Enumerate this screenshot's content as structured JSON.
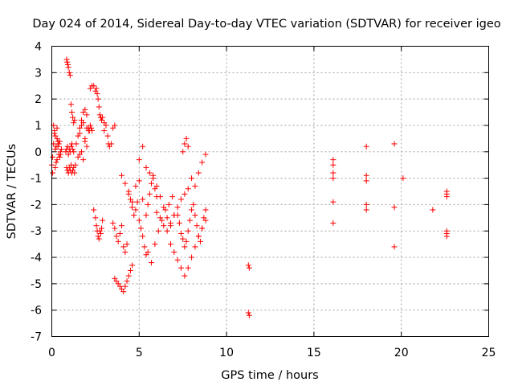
{
  "chart_data": {
    "type": "scatter",
    "title": "Day 024 of 2014, Sidereal Day-to-day VTEC variation (SDTVAR) for receiver igeo",
    "xlabel": "GPS time / hours",
    "ylabel": "SDTVAR / TECUs",
    "xlim": [
      0,
      25
    ],
    "ylim": [
      -7,
      4
    ],
    "xticks": [
      0,
      5,
      10,
      15,
      20,
      25
    ],
    "yticks": [
      -7,
      -6,
      -5,
      -4,
      -3,
      -2,
      -1,
      0,
      1,
      2,
      3,
      4
    ],
    "grid": true,
    "marker": "+",
    "color": "#ff0000",
    "series": [
      {
        "name": "igeo",
        "x": [
          0.0,
          0.05,
          0.1,
          0.15,
          0.2,
          0.25,
          0.3,
          0.35,
          0.4,
          0.45,
          0.5,
          0.1,
          0.2,
          0.3,
          0.05,
          0.15,
          0.25,
          0.35,
          0.45,
          0.55,
          0.2,
          0.3,
          0.4,
          0.5,
          0.85,
          0.88,
          0.92,
          0.95,
          1.0,
          1.05,
          1.1,
          1.15,
          1.2,
          1.25,
          1.3,
          0.85,
          0.9,
          0.95,
          1.0,
          1.05,
          1.1,
          1.15,
          1.2,
          1.25,
          1.3,
          1.35,
          0.8,
          0.85,
          0.9,
          0.95,
          1.0,
          1.05,
          1.1,
          1.15,
          1.2,
          1.25,
          1.4,
          1.5,
          1.6,
          1.7,
          1.8,
          1.9,
          2.0,
          1.5,
          1.6,
          1.7,
          1.8,
          1.9,
          2.0,
          2.1,
          1.6,
          1.7,
          1.8,
          1.9,
          2.0,
          2.1,
          2.15,
          2.2,
          2.25,
          2.3,
          2.2,
          2.3,
          2.4,
          2.5,
          2.55,
          2.6,
          2.65,
          2.7,
          2.75,
          2.8,
          2.85,
          2.9,
          3.0,
          2.4,
          2.5,
          2.55,
          2.6,
          2.65,
          2.7,
          2.75,
          2.8,
          2.85,
          2.9,
          3.0,
          3.1,
          3.2,
          3.25,
          3.3,
          3.4,
          3.5,
          3.6,
          3.5,
          3.6,
          3.7,
          3.8,
          3.9,
          4.0,
          4.1,
          4.2,
          4.3,
          3.6,
          3.7,
          3.8,
          3.9,
          4.0,
          4.1,
          4.2,
          4.3,
          4.4,
          4.5,
          4.6,
          4.0,
          4.2,
          4.4,
          4.6,
          4.8,
          5.0,
          5.2,
          5.4,
          4.4,
          4.5,
          4.6,
          4.7,
          4.8,
          4.9,
          5.0,
          5.1,
          5.2,
          5.3,
          5.4,
          5.5,
          5.6,
          5.7,
          5.8,
          5.9,
          6.0,
          5.0,
          5.2,
          5.4,
          5.6,
          5.8,
          6.0,
          6.2,
          6.4,
          6.6,
          6.8,
          7.0,
          5.5,
          5.7,
          5.9,
          6.1,
          6.3,
          6.5,
          6.7,
          6.9,
          6.0,
          6.2,
          6.4,
          6.6,
          6.8,
          7.0,
          7.2,
          7.4,
          7.6,
          7.8,
          6.8,
          7.0,
          7.2,
          7.4,
          7.6,
          7.8,
          8.0,
          8.2,
          8.4,
          8.6,
          8.8,
          7.2,
          7.3,
          7.4,
          7.5,
          7.6,
          7.7,
          7.8,
          7.9,
          8.0,
          8.1,
          8.2,
          8.3,
          8.4,
          8.5,
          8.6,
          8.7,
          8.8,
          7.5,
          7.6,
          7.7,
          7.8,
          8.0,
          8.2,
          8.4,
          8.6,
          8.8,
          11.25,
          11.3,
          11.25,
          11.3,
          16.1,
          16.1,
          16.1,
          16.1,
          16.1,
          16.1,
          18.0,
          18.0,
          18.0,
          18.0,
          18.0,
          19.6,
          19.6,
          19.6,
          20.1,
          21.8,
          22.6,
          22.6,
          22.6,
          22.6,
          22.6,
          22.6
        ],
        "y": [
          -0.5,
          -0.2,
          0.3,
          0.8,
          0.1,
          -0.4,
          0.5,
          0.2,
          -0.1,
          0.4,
          0.0,
          1.0,
          0.6,
          -0.3,
          -0.8,
          0.7,
          0.2,
          0.4,
          -0.2,
          0.1,
          -0.6,
          0.9,
          0.3,
          -0.1,
          3.5,
          3.4,
          3.3,
          3.2,
          3.0,
          2.9,
          1.8,
          1.5,
          1.3,
          1.1,
          1.2,
          -0.6,
          -0.7,
          -0.8,
          -0.6,
          -0.7,
          -0.5,
          -0.8,
          -0.7,
          -0.6,
          -0.8,
          -0.5,
          0.0,
          0.1,
          0.2,
          -0.1,
          0.1,
          0.0,
          0.2,
          0.3,
          0.1,
          0.0,
          0.3,
          0.6,
          0.9,
          1.2,
          1.5,
          1.6,
          1.4,
          -0.2,
          -0.1,
          0.0,
          -0.3,
          0.5,
          0.2,
          0.8,
          0.7,
          1.0,
          1.1,
          0.4,
          0.9,
          0.9,
          0.8,
          1.0,
          0.9,
          0.8,
          2.4,
          2.5,
          2.5,
          2.3,
          2.4,
          2.2,
          2.0,
          1.7,
          1.4,
          1.3,
          1.2,
          1.3,
          1.1,
          -2.2,
          -2.5,
          -2.8,
          -3.0,
          -3.2,
          -3.3,
          -3.0,
          -3.1,
          -2.9,
          -2.6,
          0.8,
          1.0,
          0.6,
          0.3,
          0.2,
          0.3,
          0.9,
          1.0,
          -2.7,
          -2.9,
          -3.2,
          -3.4,
          -3.1,
          -2.8,
          -3.6,
          -3.8,
          -3.5,
          -4.8,
          -4.9,
          -5.0,
          -5.1,
          -5.2,
          -5.3,
          -5.1,
          -4.9,
          -4.7,
          -4.5,
          -4.3,
          -0.9,
          -1.2,
          -1.6,
          -1.9,
          -1.3,
          -1.1,
          -1.8,
          -2.4,
          -1.5,
          -1.8,
          -2.1,
          -2.4,
          -2.2,
          -1.9,
          -2.6,
          -2.9,
          -3.2,
          -3.6,
          -3.9,
          -2.0,
          -1.6,
          -1.2,
          -0.9,
          -1.4,
          -1.7,
          -0.3,
          0.2,
          -0.6,
          -0.8,
          -1.0,
          -1.3,
          -1.7,
          -2.1,
          -2.5,
          -2.8,
          -2.4,
          -3.8,
          -4.2,
          -3.5,
          -3.0,
          -2.6,
          -2.2,
          -2.0,
          -1.7,
          -2.3,
          -2.5,
          -2.8,
          -3.0,
          -2.7,
          -2.4,
          -2.1,
          -1.8,
          -1.6,
          -1.4,
          -3.5,
          -3.8,
          -4.1,
          -4.4,
          -4.7,
          -4.4,
          -4.0,
          -3.6,
          -3.2,
          -2.9,
          -2.6,
          -2.4,
          -2.7,
          -3.1,
          -3.3,
          -3.6,
          -3.4,
          -3.0,
          -2.6,
          -2.2,
          -2.0,
          -2.4,
          -2.8,
          -3.2,
          -3.4,
          -2.9,
          -2.5,
          -2.2,
          0.0,
          0.3,
          0.5,
          0.2,
          -1.0,
          -1.3,
          -0.8,
          -0.4,
          -0.1,
          -4.3,
          -4.4,
          -6.1,
          -6.2,
          -0.3,
          -0.8,
          -1.0,
          -1.9,
          -2.7,
          -0.5,
          0.2,
          -0.9,
          -1.1,
          -2.0,
          -2.2,
          0.3,
          -2.1,
          -3.6,
          -1.0,
          -2.2,
          -1.5,
          -1.6,
          -1.7,
          -3.0,
          -3.1,
          -3.2
        ]
      }
    ]
  }
}
